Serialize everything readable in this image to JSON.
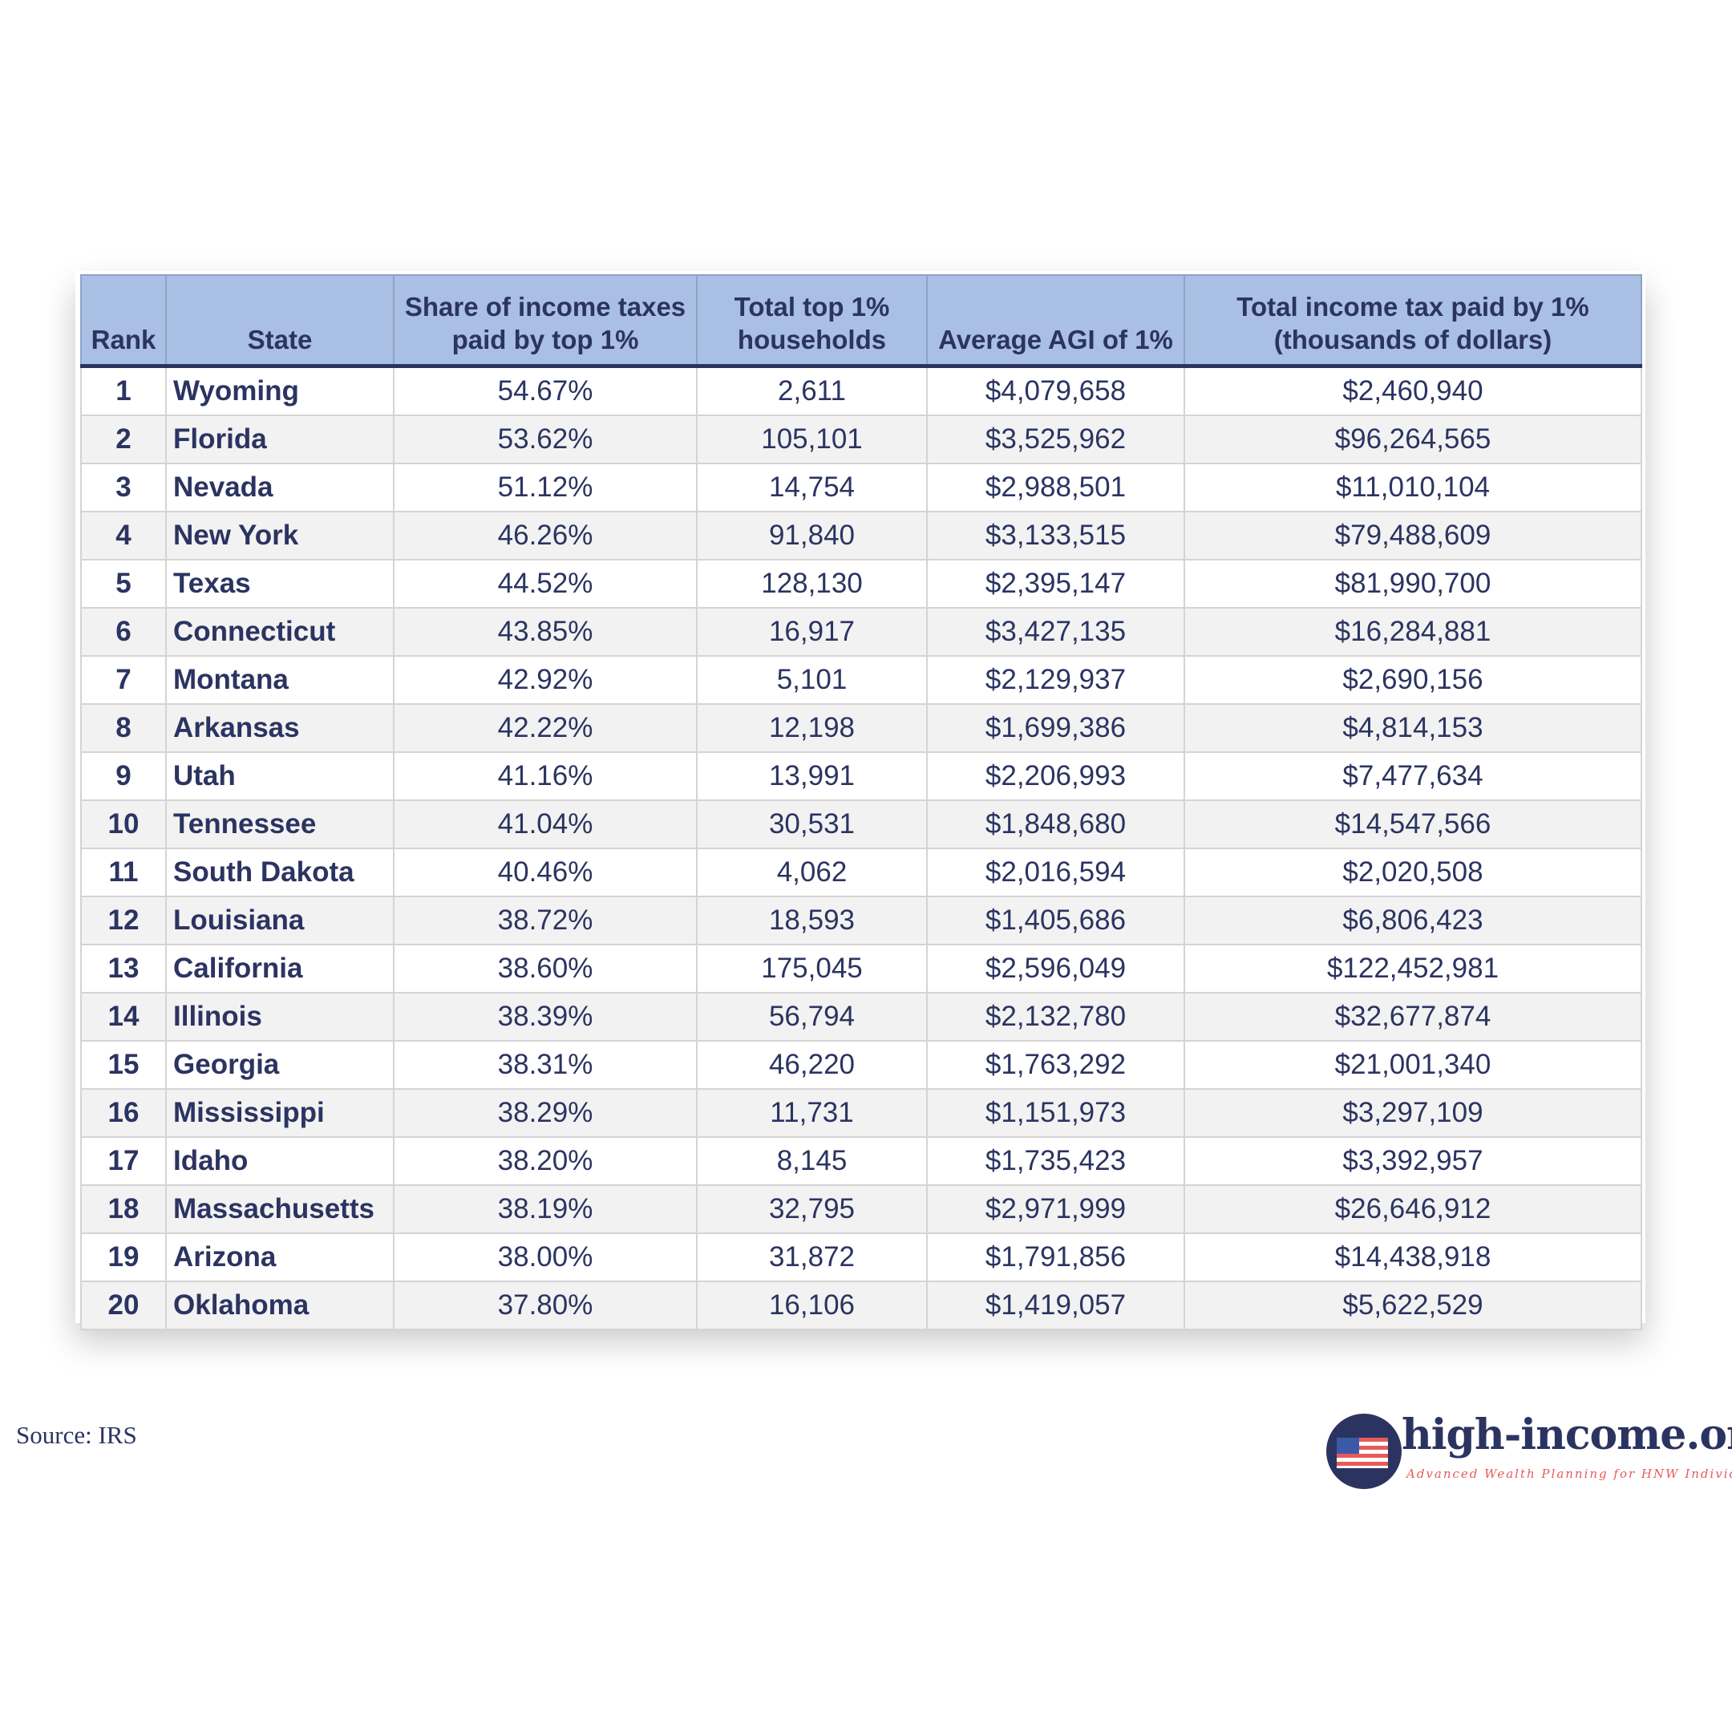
{
  "table": {
    "headers": [
      "Rank",
      "State",
      "Share of income taxes paid by top 1%",
      "Total top 1% households",
      "Average AGI of 1%",
      "Total income tax paid by 1% (thousands of dollars)"
    ],
    "rows": [
      [
        "1",
        "Wyoming",
        "54.67%",
        "2,611",
        "$4,079,658",
        "$2,460,940"
      ],
      [
        "2",
        "Florida",
        "53.62%",
        "105,101",
        "$3,525,962",
        "$96,264,565"
      ],
      [
        "3",
        "Nevada",
        "51.12%",
        "14,754",
        "$2,988,501",
        "$11,010,104"
      ],
      [
        "4",
        "New York",
        "46.26%",
        "91,840",
        "$3,133,515",
        "$79,488,609"
      ],
      [
        "5",
        "Texas",
        "44.52%",
        "128,130",
        "$2,395,147",
        "$81,990,700"
      ],
      [
        "6",
        "Connecticut",
        "43.85%",
        "16,917",
        "$3,427,135",
        "$16,284,881"
      ],
      [
        "7",
        "Montana",
        "42.92%",
        "5,101",
        "$2,129,937",
        "$2,690,156"
      ],
      [
        "8",
        "Arkansas",
        "42.22%",
        "12,198",
        "$1,699,386",
        "$4,814,153"
      ],
      [
        "9",
        "Utah",
        "41.16%",
        "13,991",
        "$2,206,993",
        "$7,477,634"
      ],
      [
        "10",
        "Tennessee",
        "41.04%",
        "30,531",
        "$1,848,680",
        "$14,547,566"
      ],
      [
        "11",
        "South Dakota",
        "40.46%",
        "4,062",
        "$2,016,594",
        "$2,020,508"
      ],
      [
        "12",
        "Louisiana",
        "38.72%",
        "18,593",
        "$1,405,686",
        "$6,806,423"
      ],
      [
        "13",
        "California",
        "38.60%",
        "175,045",
        "$2,596,049",
        "$122,452,981"
      ],
      [
        "14",
        "Illinois",
        "38.39%",
        "56,794",
        "$2,132,780",
        "$32,677,874"
      ],
      [
        "15",
        "Georgia",
        "38.31%",
        "46,220",
        "$1,763,292",
        "$21,001,340"
      ],
      [
        "16",
        "Mississippi",
        "38.29%",
        "11,731",
        "$1,151,973",
        "$3,297,109"
      ],
      [
        "17",
        "Idaho",
        "38.20%",
        "8,145",
        "$1,735,423",
        "$3,392,957"
      ],
      [
        "18",
        "Massachusetts",
        "38.19%",
        "32,795",
        "$2,971,999",
        "$26,646,912"
      ],
      [
        "19",
        "Arizona",
        "38.00%",
        "31,872",
        "$1,791,856",
        "$14,438,918"
      ],
      [
        "20",
        "Oklahoma",
        "37.80%",
        "16,106",
        "$1,419,057",
        "$5,622,529"
      ]
    ]
  },
  "source": "Source: IRS",
  "logo": {
    "icon": "us-flag-icon",
    "brand": "high-income.org",
    "tagline": "Advanced Wealth Planning for HNW Individiuals"
  },
  "colors": {
    "header_bg": "#a9bfe3",
    "text": "#2b3461",
    "alt_row": "#f2f2f2",
    "accent": "#e85a5a"
  }
}
